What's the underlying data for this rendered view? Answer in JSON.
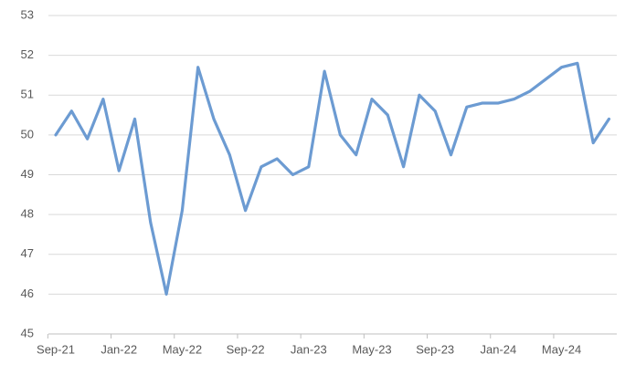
{
  "chart_data": {
    "type": "line",
    "categories": [
      "Sep-21",
      null,
      null,
      null,
      "Jan-22",
      null,
      null,
      null,
      "May-22",
      null,
      null,
      null,
      "Sep-22",
      null,
      null,
      null,
      "Jan-23",
      null,
      null,
      null,
      "May-23",
      null,
      null,
      null,
      "Sep-23",
      null,
      null,
      null,
      "Jan-24",
      null,
      null,
      null,
      "May-24",
      null,
      null,
      null
    ],
    "values": [
      50.0,
      50.6,
      49.9,
      50.9,
      49.1,
      50.4,
      47.8,
      46.0,
      48.1,
      51.7,
      50.4,
      49.5,
      48.1,
      49.2,
      49.4,
      49.0,
      49.2,
      51.6,
      50.0,
      49.5,
      50.9,
      50.5,
      49.2,
      51.0,
      50.6,
      49.5,
      50.7,
      50.8,
      50.8,
      50.9,
      51.1,
      51.4,
      51.7,
      51.8,
      49.8,
      50.4
    ],
    "color": "#6c9bd2",
    "ylim": [
      45,
      53
    ],
    "yticks": [
      45,
      46,
      47,
      48,
      49,
      50,
      51,
      52,
      53
    ],
    "grid": true
  }
}
